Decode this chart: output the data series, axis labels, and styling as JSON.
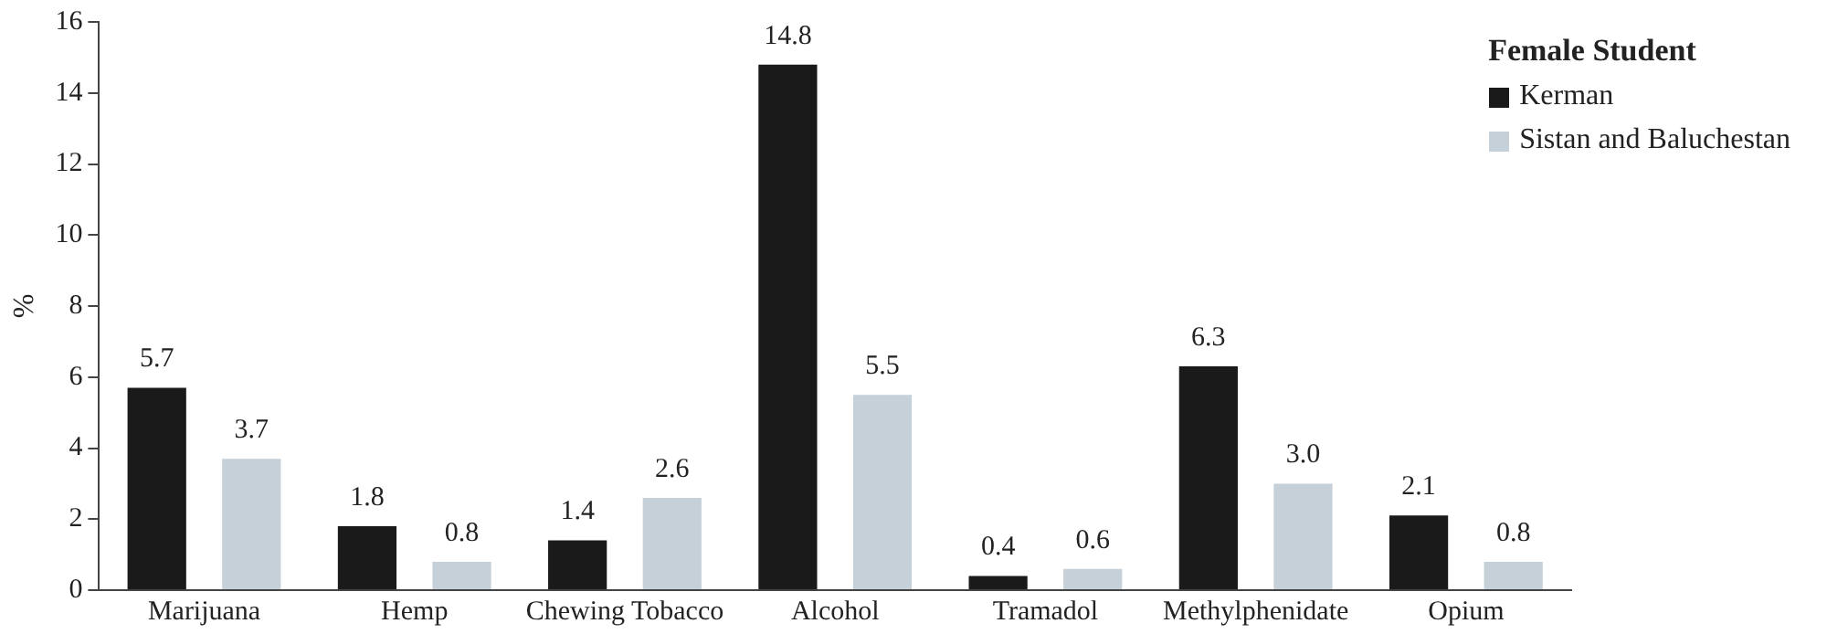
{
  "chart_data": {
    "type": "bar",
    "ylabel": "%",
    "legend_title": "Female Student",
    "legend": "top right",
    "grid": false,
    "categories": [
      "Marijuana",
      "Hemp",
      "Chewing Tobacco",
      "Alcohol",
      "Tramadol",
      "Methylphenidate",
      "Opium"
    ],
    "series": [
      {
        "name": "Kerman",
        "color": "#1a1a1a",
        "values": [
          5.7,
          1.8,
          1.4,
          14.8,
          0.4,
          6.3,
          2.1
        ],
        "value_labels": [
          "5.7",
          "1.8",
          "1.4",
          "14.8",
          "0.4",
          "6.3",
          "2.1"
        ]
      },
      {
        "name": "Sistan and Baluchestan",
        "color": "#c5d0d8",
        "values": [
          3.7,
          0.8,
          2.6,
          5.5,
          0.6,
          3.0,
          0.8
        ],
        "value_labels": [
          "3.7",
          "0.8",
          "2.6",
          "5.5",
          "0.6",
          "3.0",
          "0.8"
        ]
      }
    ],
    "ylim": [
      0,
      16
    ],
    "yticks": [
      0,
      2,
      4,
      6,
      8,
      10,
      12,
      14,
      16
    ]
  }
}
